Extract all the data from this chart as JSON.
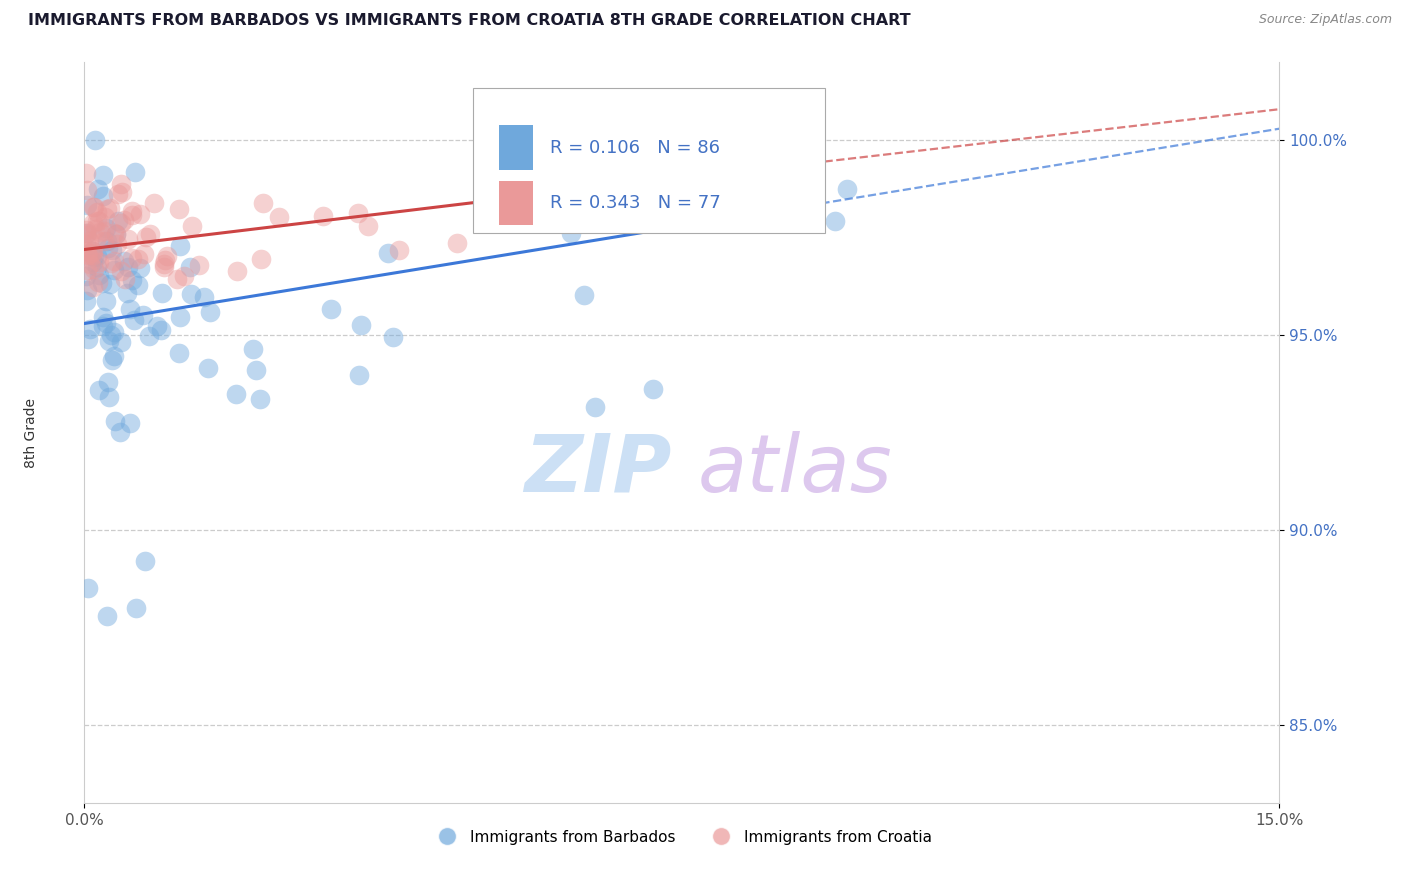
{
  "title": "IMMIGRANTS FROM BARBADOS VS IMMIGRANTS FROM CROATIA 8TH GRADE CORRELATION CHART",
  "source_text": "Source: ZipAtlas.com",
  "ylabel": "8th Grade",
  "xlim": [
    0.0,
    15.0
  ],
  "ylim": [
    83.0,
    102.0
  ],
  "xticks": [
    0.0,
    15.0
  ],
  "xticklabels": [
    "0.0%",
    "15.0%"
  ],
  "yticks": [
    85.0,
    90.0,
    95.0,
    100.0
  ],
  "yticklabels": [
    "85.0%",
    "90.0%",
    "95.0%",
    "100.0%"
  ],
  "legend_R1": "0.106",
  "legend_N1": "86",
  "legend_R2": "0.343",
  "legend_N2": "77",
  "color_barbados": "#6fa8dc",
  "color_croatia": "#ea9999",
  "color_trend_barbados": "#3c78d8",
  "color_trend_croatia": "#cc4444",
  "grid_color": "#cccccc",
  "tick_color_y": "#4472c4",
  "tick_color_x": "#555555",
  "watermark_zip_color": "#cce0f5",
  "watermark_atlas_color": "#ddc8ee"
}
